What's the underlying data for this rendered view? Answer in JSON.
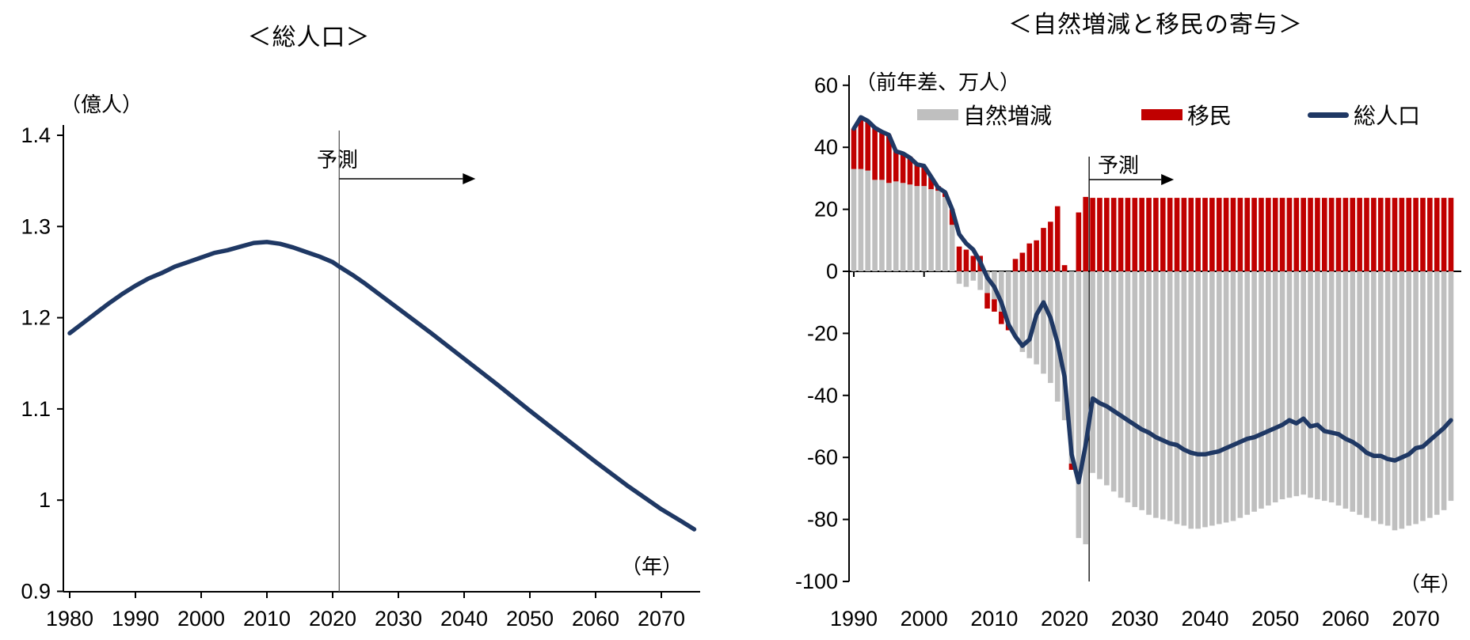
{
  "chart_data": [
    {
      "type": "line",
      "title": "＜総人口＞",
      "ylabel": "（億人）",
      "xlabel": "（年）",
      "forecast_label": "予測",
      "forecast_start_year": 2021,
      "ylim": [
        0.9,
        1.4
      ],
      "ytick_labels": [
        "1.4",
        "1.3",
        "1.2",
        "1.1",
        "1",
        "0.9"
      ],
      "yticks": [
        1.4,
        1.3,
        1.2,
        1.1,
        1.0,
        0.9
      ],
      "xticks": [
        1980,
        1990,
        2000,
        2010,
        2020,
        2030,
        2040,
        2050,
        2060,
        2070
      ],
      "x_range": [
        1980,
        2075
      ],
      "grid": "off",
      "series": [
        {
          "name": "総人口",
          "color": "#1f3864",
          "points": [
            [
              1980,
              1.183
            ],
            [
              1982,
              1.194
            ],
            [
              1984,
              1.205
            ],
            [
              1986,
              1.216
            ],
            [
              1988,
              1.226
            ],
            [
              1990,
              1.235
            ],
            [
              1992,
              1.243
            ],
            [
              1994,
              1.249
            ],
            [
              1996,
              1.256
            ],
            [
              1998,
              1.261
            ],
            [
              2000,
              1.266
            ],
            [
              2002,
              1.271
            ],
            [
              2004,
              1.274
            ],
            [
              2006,
              1.278
            ],
            [
              2008,
              1.282
            ],
            [
              2010,
              1.283
            ],
            [
              2012,
              1.281
            ],
            [
              2014,
              1.277
            ],
            [
              2016,
              1.272
            ],
            [
              2018,
              1.267
            ],
            [
              2020,
              1.261
            ],
            [
              2021,
              1.256
            ],
            [
              2023,
              1.247
            ],
            [
              2025,
              1.237
            ],
            [
              2030,
              1.21
            ],
            [
              2035,
              1.183
            ],
            [
              2040,
              1.155
            ],
            [
              2045,
              1.127
            ],
            [
              2050,
              1.098
            ],
            [
              2055,
              1.07
            ],
            [
              2060,
              1.042
            ],
            [
              2065,
              1.015
            ],
            [
              2070,
              0.99
            ],
            [
              2073,
              0.977
            ],
            [
              2075,
              0.968
            ]
          ]
        }
      ]
    },
    {
      "type": "bar",
      "title": "＜自然増減と移民の寄与＞",
      "ylabel": "（前年差、万人）",
      "xlabel": "（年）",
      "forecast_label": "予測",
      "forecast_start_year": 2024,
      "ylim": [
        -100,
        60
      ],
      "yticks": [
        60,
        40,
        20,
        0,
        -20,
        -40,
        -60,
        -80,
        -100
      ],
      "xticks": [
        1990,
        2000,
        2010,
        2020,
        2030,
        2040,
        2050,
        2060,
        2070
      ],
      "x_range": [
        1990,
        2075
      ],
      "grid": "off",
      "legend_position": "top",
      "series": [
        {
          "name": "自然増減",
          "type": "bar",
          "color": "#bfbfbf",
          "values": [
            33,
            33,
            32.5,
            29.5,
            29.5,
            28.5,
            29,
            28.5,
            28,
            27.5,
            27.5,
            26.5,
            26,
            24,
            15,
            -4,
            -5,
            -3,
            -6,
            -7,
            -9,
            -13,
            -17,
            -21,
            -26,
            -28,
            -30,
            -33,
            -36,
            -42,
            -48,
            -62,
            -86,
            -88,
            -65,
            -67,
            -69,
            -71,
            -73,
            -74.5,
            -76,
            -77,
            -78.5,
            -79.5,
            -80,
            -80.5,
            -81.5,
            -82,
            -83,
            -83,
            -82.5,
            -82,
            -81.5,
            -81,
            -80.5,
            -79.5,
            -78.5,
            -77.5,
            -76.5,
            -75.5,
            -74.5,
            -73.5,
            -73,
            -72.5,
            -72,
            -73,
            -73.5,
            -74,
            -74.5,
            -75.5,
            -76.5,
            -77.5,
            -78.5,
            -79.5,
            -80.5,
            -81.5,
            -82,
            -83.5,
            -83,
            -82,
            -81.5,
            -80.5,
            -79.5,
            -78.5,
            -77,
            -74
          ]
        },
        {
          "name": "移民",
          "type": "bar",
          "color": "#c00000",
          "values": [
            13,
            16.5,
            16,
            17,
            15.5,
            15.5,
            10,
            9.5,
            9,
            7,
            6.5,
            4,
            1.5,
            1.5,
            5,
            8,
            7,
            5,
            5,
            -5,
            -4,
            -4,
            -2,
            4,
            6,
            9,
            10,
            14,
            16,
            21,
            2,
            -2,
            19,
            24,
            23.7,
            23.7,
            23.7,
            23.7,
            23.7,
            23.7,
            23.7,
            23.7,
            23.7,
            23.7,
            23.7,
            23.7,
            23.7,
            23.7,
            23.7,
            23.7,
            23.7,
            23.7,
            23.7,
            23.7,
            23.7,
            23.7,
            23.7,
            23.7,
            23.7,
            23.7,
            23.7,
            23.7,
            23.7,
            23.7,
            23.7,
            23.7,
            23.7,
            23.7,
            23.7,
            23.7,
            23.7,
            23.7,
            23.7,
            23.7,
            23.7,
            23.7,
            23.7,
            23.7,
            23.7,
            23.7,
            23.7,
            23.7,
            23.7,
            23.7,
            23.7,
            23.7
          ]
        },
        {
          "name": "総人口",
          "type": "line",
          "color": "#1f3864",
          "values": [
            46,
            49.7,
            48.5,
            46.3,
            45,
            44,
            38.7,
            38,
            36.6,
            34.5,
            34,
            30.5,
            27,
            25.5,
            20,
            12,
            9,
            7,
            3,
            -2,
            -5,
            -10,
            -17,
            -21,
            -24,
            -22,
            -14,
            -10,
            -15,
            -23,
            -34,
            -59,
            -68,
            -56,
            -41,
            -42.5,
            -43.5,
            -45,
            -46.5,
            -48,
            -49.5,
            -51,
            -52,
            -53.5,
            -54.5,
            -55.5,
            -56,
            -57.5,
            -58.5,
            -59,
            -59,
            -58.5,
            -58,
            -57,
            -56,
            -55,
            -54,
            -53.5,
            -52.5,
            -51.5,
            -50.5,
            -49.5,
            -48,
            -49,
            -47.5,
            -50,
            -49.5,
            -51.5,
            -52,
            -52.5,
            -54,
            -55,
            -56.5,
            -58.5,
            -59.5,
            -59.5,
            -60.5,
            -61,
            -60,
            -59,
            -57,
            -56.5,
            -54.5,
            -52.5,
            -50.5,
            -48
          ]
        }
      ]
    }
  ],
  "colors": {
    "line_navy": "#1f3864",
    "bar_red": "#c00000",
    "bar_gray": "#bfbfbf",
    "axis": "#000000",
    "forecast_line": "#595959"
  }
}
